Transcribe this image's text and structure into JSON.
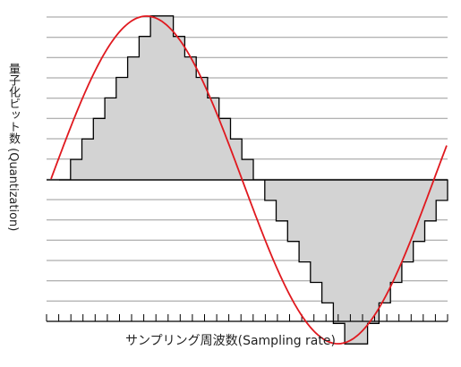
{
  "title": "",
  "xlabel": "サンプリング周波数(Sampling rate)",
  "ylabel": "量子化ビット数 (Quantization)",
  "colors": {
    "grid": "#999999",
    "samples_fill": "#d3d3d3",
    "samples_stroke": "#000000",
    "sine": "#e0191f",
    "axis": "#000000"
  },
  "chart_data": {
    "type": "area",
    "description_series": [
      {
        "name": "",
        "kind": "step",
        "levels": [
          0,
          1,
          2,
          3,
          4,
          5,
          6,
          7,
          8,
          8,
          7,
          6,
          5,
          4,
          3,
          2,
          1,
          0,
          -1,
          -2,
          -3,
          -4,
          -5,
          -6,
          -7,
          -8,
          -8,
          -7,
          -6,
          -5,
          -4,
          -3,
          -2,
          -1
        ]
      },
      {
        "name": "",
        "kind": "curve",
        "function": "sine",
        "periods": 1
      }
    ],
    "x_ticks": 33,
    "quantization_levels": [
      -7,
      -6,
      -5,
      -4,
      -3,
      -2,
      -1,
      0,
      1,
      2,
      3,
      4,
      5,
      6,
      7,
      8
    ],
    "grid": true
  }
}
